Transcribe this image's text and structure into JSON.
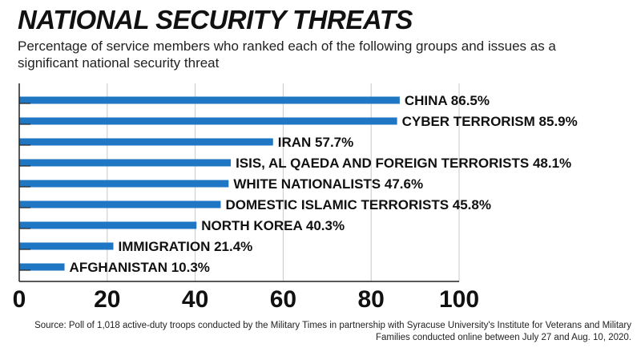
{
  "title": "NATIONAL SECURITY THREATS",
  "subtitle": "Percentage of service members who ranked each of the following groups and issues as a significant national security threat",
  "source": "Source: Poll of 1,018 active-duty troops conducted by the Military Times in partnership with Syracuse University's Institute for Veterans and Military Families conducted online between July 27 and Aug. 10, 2020.",
  "chart_data": {
    "type": "bar",
    "orientation": "horizontal",
    "title": "NATIONAL SECURITY THREATS",
    "subtitle": "Percentage of service members who ranked each of the following groups and issues as a significant national security threat",
    "categories": [
      "CHINA",
      "CYBER TERRORISM",
      "IRAN",
      "ISIS, AL QAEDA AND FOREIGN TERRORISTS",
      "WHITE NATIONALISTS",
      "DOMESTIC ISLAMIC TERRORISTS",
      "NORTH KOREA",
      "IMMIGRATION",
      "AFGHANISTAN"
    ],
    "values": [
      86.5,
      85.9,
      57.7,
      48.1,
      47.6,
      45.8,
      40.3,
      21.4,
      10.3
    ],
    "data_labels": [
      "CHINA 86.5%",
      "CYBER TERRORISM 85.9%",
      "IRAN 57.7%",
      "ISIS, AL QAEDA AND FOREIGN TERRORISTS 48.1%",
      "WHITE NATIONALISTS 47.6%",
      "DOMESTIC ISLAMIC TERRORISTS 45.8%",
      "NORTH KOREA 40.3%",
      "IMMIGRATION 21.4%",
      "AFGHANISTAN 10.3%"
    ],
    "xlim": [
      0,
      100
    ],
    "xticks": [
      "0",
      "20",
      "40",
      "60",
      "80",
      "100"
    ],
    "grid": true,
    "bar_color": "#1f77c4"
  }
}
